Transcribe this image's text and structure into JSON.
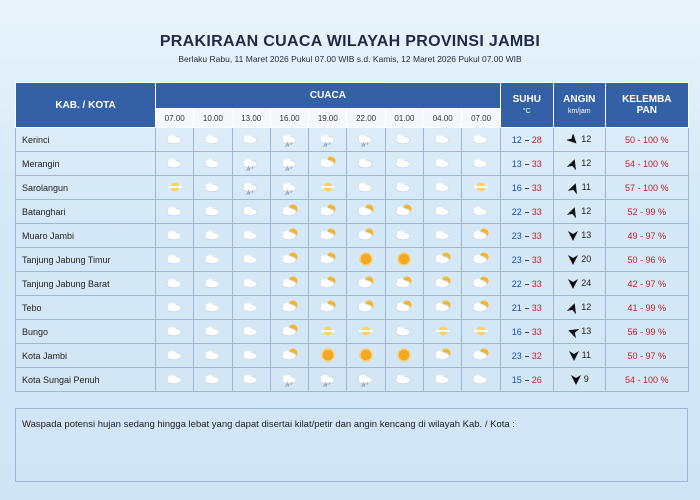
{
  "header": {
    "title": "PRAKIRAAN CUACA WILAYAH PROVINSI JAMBI",
    "subtitle": "Berlaku Rabu, 11 Maret 2026 Pukul 07.00 WIB s.d. Kamis, 12 Maret 2026 Pukul 07.00 WIB"
  },
  "table": {
    "columns": {
      "region": "KAB. / KOTA",
      "weather": "CUACA",
      "temp": "SUHU",
      "temp_unit": "°C",
      "wind": "ANGIN",
      "wind_unit": "km/jam",
      "humidity": "KELEMBA PAN"
    },
    "times": [
      "07.00",
      "10.00",
      "13.00",
      "16.00",
      "19.00",
      "22.00",
      "01.00",
      "04.00",
      "07.00"
    ],
    "rows": [
      {
        "name": "Kerinci",
        "temp_min": 12,
        "temp_max": 28,
        "wind": 12,
        "humidity": "50 - 100 %"
      },
      {
        "name": "Merangin",
        "temp_min": 13,
        "temp_max": 33,
        "wind": 12,
        "humidity": "54 - 100 %"
      },
      {
        "name": "Sarolangun",
        "temp_min": 16,
        "temp_max": 33,
        "wind": 11,
        "humidity": "57 - 100 %"
      },
      {
        "name": "Batanghari",
        "temp_min": 22,
        "temp_max": 33,
        "wind": 12,
        "humidity": "52 - 99 %"
      },
      {
        "name": "Muaro Jambi",
        "temp_min": 23,
        "temp_max": 33,
        "wind": 13,
        "humidity": "49 - 97 %"
      },
      {
        "name": "Tanjung Jabung Timur",
        "temp_min": 23,
        "temp_max": 33,
        "wind": 20,
        "humidity": "50 - 96 %"
      },
      {
        "name": "Tanjung Jabung Barat",
        "temp_min": 22,
        "temp_max": 33,
        "wind": 24,
        "humidity": "42 - 97 %"
      },
      {
        "name": "Tebo",
        "temp_min": 21,
        "temp_max": 33,
        "wind": 12,
        "humidity": "41 - 99 %"
      },
      {
        "name": "Bungo",
        "temp_min": 16,
        "temp_max": 33,
        "wind": 13,
        "humidity": "56 - 99 %"
      },
      {
        "name": "Kota Jambi",
        "temp_min": 23,
        "temp_max": 32,
        "wind": 11,
        "humidity": "50 - 97 %"
      },
      {
        "name": "Kota Sungai Penuh",
        "temp_min": 15,
        "temp_max": 26,
        "wind": 9,
        "humidity": "54 - 100 %"
      }
    ]
  },
  "footer": {
    "note": "Waspada potensi hujan sedang hingga lebat yang dapat disertai kilat/petir dan angin kencang di wilayah Kab. / Kota :"
  }
}
